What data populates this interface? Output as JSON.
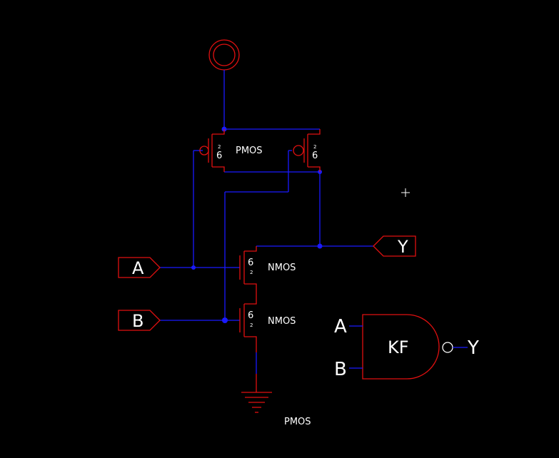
{
  "schematic": {
    "pins": {
      "a": "A",
      "b": "B",
      "y": "Y"
    },
    "transistors": {
      "pmos_left": {
        "width": "6",
        "length": "2"
      },
      "pmos_right": {
        "width": "6",
        "length": "2"
      },
      "nmos_top": {
        "width": "6",
        "length": "2",
        "label": "NMOS"
      },
      "nmos_bottom": {
        "width": "6",
        "length": "2",
        "label": "NMOS"
      }
    },
    "pmos_label": "PMOS",
    "stray_label": "PMOS"
  },
  "gate_symbol": {
    "label": "KF",
    "input_a": "A",
    "input_b": "B",
    "output": "Y"
  },
  "colors": {
    "background": "#000000",
    "wire": "#1a1aff",
    "component": "#e01010",
    "text": "#ffffff"
  }
}
